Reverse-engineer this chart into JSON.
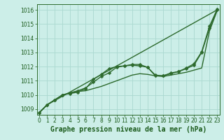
{
  "title": "Graphe pression niveau de la mer (hPa)",
  "bg_color": "#cceee8",
  "grid_color": "#aad8d0",
  "line_color": "#2d6a2d",
  "ylim": [
    1008.6,
    1016.4
  ],
  "xlim": [
    -0.3,
    23.3
  ],
  "yticks": [
    1009,
    1010,
    1011,
    1012,
    1013,
    1014,
    1015,
    1016
  ],
  "xticks": [
    0,
    1,
    2,
    3,
    4,
    5,
    6,
    7,
    8,
    9,
    10,
    11,
    12,
    13,
    14,
    15,
    16,
    17,
    18,
    19,
    20,
    21,
    22,
    23
  ],
  "series": [
    {
      "y": [
        1008.75,
        1009.3,
        null,
        null,
        null,
        null,
        null,
        null,
        null,
        null,
        null,
        null,
        null,
        null,
        null,
        null,
        null,
        null,
        null,
        null,
        null,
        null,
        null,
        1016.0
      ],
      "markers": false,
      "lw": 1.0
    },
    {
      "y": [
        1008.75,
        1009.3,
        1009.65,
        1010.0,
        1010.15,
        1010.25,
        1010.3,
        1010.45,
        1010.6,
        1010.8,
        1011.0,
        1011.2,
        1011.4,
        1011.5,
        1011.45,
        1011.35,
        1011.3,
        1011.4,
        1011.5,
        1011.6,
        1011.75,
        1011.9,
        1014.5,
        1015.95
      ],
      "markers": false,
      "lw": 1.0
    },
    {
      "y": [
        1008.75,
        1009.3,
        1009.65,
        1010.0,
        1010.15,
        1010.3,
        1010.5,
        1010.9,
        1011.3,
        1011.55,
        1011.95,
        1012.05,
        1012.1,
        1012.05,
        1011.95,
        1011.4,
        1011.35,
        1011.5,
        1011.65,
        1011.85,
        1012.1,
        1013.0,
        1014.7,
        1016.0
      ],
      "markers": true,
      "lw": 1.0
    },
    {
      "y": [
        1008.75,
        1009.3,
        1009.65,
        1010.0,
        1010.1,
        1010.2,
        1010.45,
        1011.1,
        1011.45,
        1011.85,
        1012.0,
        1012.05,
        1012.15,
        1012.15,
        1011.95,
        1011.35,
        1011.35,
        1011.55,
        1011.65,
        1011.9,
        1012.2,
        1013.05,
        1014.85,
        1016.05
      ],
      "markers": true,
      "lw": 1.0
    }
  ],
  "marker": "D",
  "marker_size": 2.5,
  "font_color": "#1a5a1a",
  "title_fontsize": 7.0,
  "tick_fontsize": 5.5
}
